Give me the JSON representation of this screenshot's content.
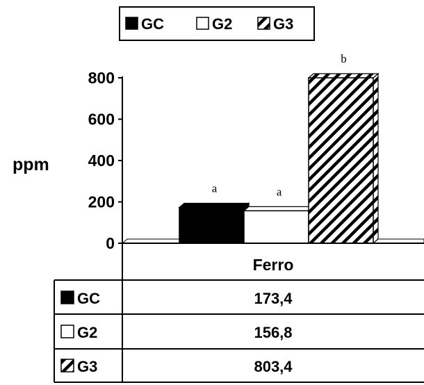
{
  "chart_data": {
    "type": "bar",
    "categories": [
      "Ferro"
    ],
    "series": [
      {
        "name": "GC",
        "values": [
          173.4
        ],
        "label": "a",
        "pattern": "solid",
        "color": "#000000"
      },
      {
        "name": "G2",
        "values": [
          156.8
        ],
        "label": "a",
        "pattern": "empty",
        "color": "#ffffff"
      },
      {
        "name": "G3",
        "values": [
          803.4
        ],
        "label": "b",
        "pattern": "hatch",
        "color": "#000000"
      }
    ],
    "ylabel": "ppm",
    "xlabel": "",
    "title": "",
    "ylim": [
      0,
      800
    ],
    "yticks": [
      0,
      200,
      400,
      600,
      800
    ],
    "legend_position": "top-center",
    "grid": false,
    "data_table": {
      "header": "Ferro",
      "rows": [
        {
          "series": "GC",
          "value": "173,4"
        },
        {
          "series": "G2",
          "value": "156,8"
        },
        {
          "series": "G3",
          "value": "803,4"
        }
      ]
    }
  }
}
